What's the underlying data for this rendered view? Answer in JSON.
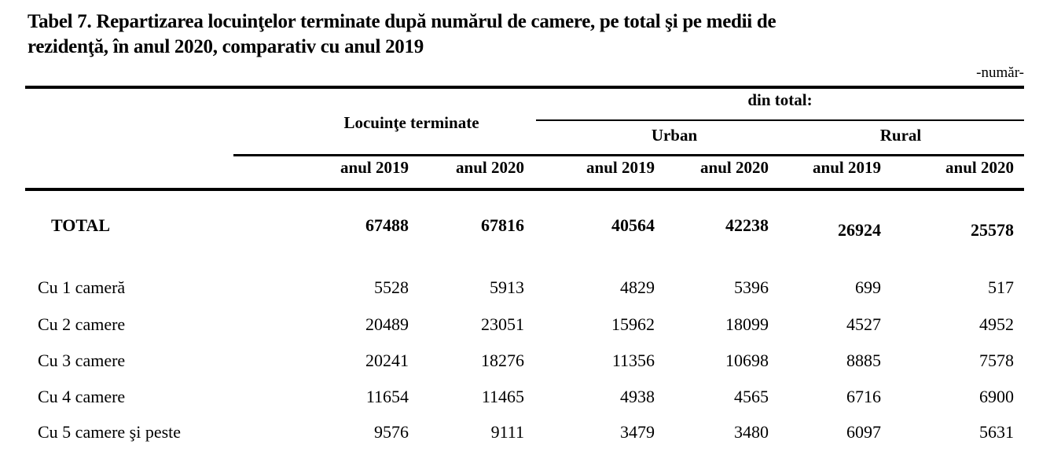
{
  "title": {
    "line1": "Tabel 7. Repartizarea locuinţelor terminate după numărul de camere, pe total şi pe medii de",
    "line2": "rezidenţă, în anul 2020, comparativ cu anul 2019"
  },
  "unit_note": "-număr-",
  "table": {
    "group_headers": {
      "completed_dwellings": "Locuinţe terminate",
      "of_total": "din total:",
      "urban": "Urban",
      "rural": "Rural"
    },
    "year_headers": [
      "anul 2019",
      "anul 2020",
      "anul 2019",
      "anul 2020",
      "anul 2019",
      "anul 2020"
    ],
    "rows": [
      {
        "label": "TOTAL",
        "values": [
          "67488",
          "67816",
          "40564",
          "42238",
          "26924",
          "25578"
        ]
      },
      {
        "label": "Cu 1 cameră",
        "values": [
          "5528",
          "5913",
          "4829",
          "5396",
          "699",
          "517"
        ]
      },
      {
        "label": "Cu 2 camere",
        "values": [
          "20489",
          "23051",
          "15962",
          "18099",
          "4527",
          "4952"
        ]
      },
      {
        "label": "Cu 3 camere",
        "values": [
          "20241",
          "18276",
          "11356",
          "10698",
          "8885",
          "7578"
        ]
      },
      {
        "label": "Cu 4 camere",
        "values": [
          "11654",
          "11465",
          "4938",
          "4565",
          "6716",
          "6900"
        ]
      },
      {
        "label": "Cu 5 camere şi peste",
        "values": [
          "9576",
          "9111",
          "3479",
          "3480",
          "6097",
          "5631"
        ]
      }
    ]
  },
  "colors": {
    "background": "#ffffff",
    "text": "#000000",
    "rule": "#000000"
  }
}
